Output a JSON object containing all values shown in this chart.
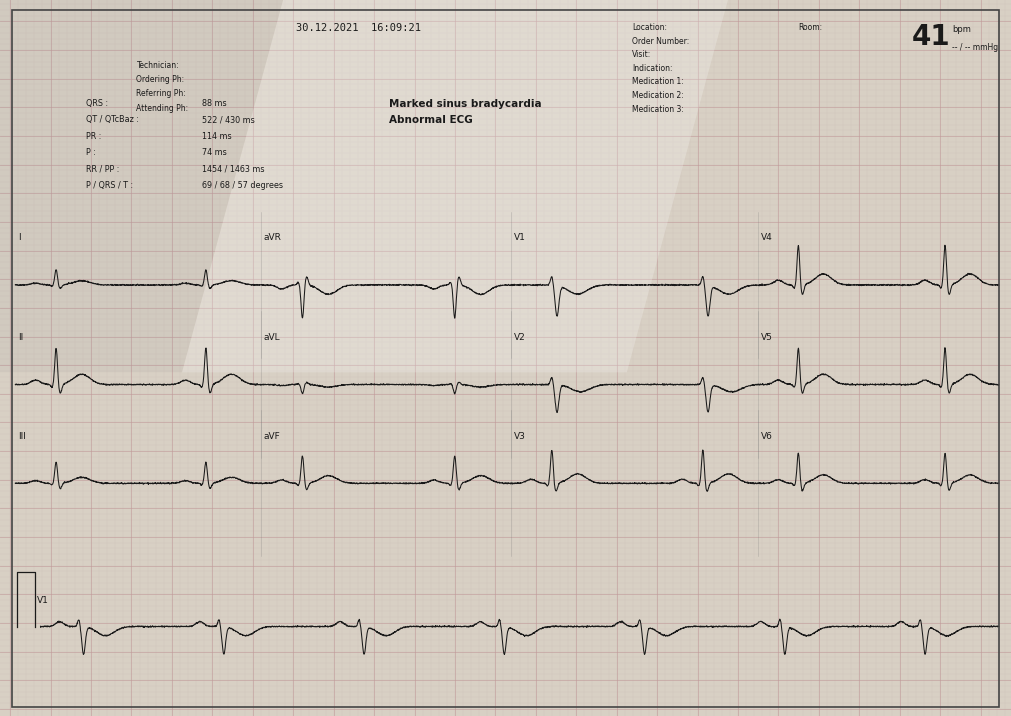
{
  "bg_color": "#d8d0c4",
  "grid_major_color": "#c09898",
  "grid_minor_color": "#cbb8b2",
  "border_color": "#444444",
  "ecg_color": "#1a1a1a",
  "text_color": "#1a1a1a",
  "title_datetime": "30.12.2021  16:09:21",
  "info_left": [
    "Technician:",
    "Ordering Ph:",
    "Referring Ph:",
    "Attending Ph:"
  ],
  "info_right_labels": [
    "Location:",
    "Order Number:",
    "Visit:",
    "Indication:",
    "Medication 1:",
    "Medication 2:",
    "Medication 3:"
  ],
  "room_label": "Room:",
  "bpm_value": "41",
  "bpm_unit": "bpm",
  "bp_value": "-- / -- mmHg",
  "diagnosis1": "Marked sinus bradycardia",
  "diagnosis2": "Abnormal ECG",
  "fig_width": 10.11,
  "fig_height": 7.16,
  "dpi": 100,
  "meas_labels": [
    "QRS :",
    "QT / QTcBaz :",
    "PR :",
    "P :",
    "RR / PP :",
    "P / QRS / T :"
  ],
  "meas_values": [
    "88 ms",
    "522 / 430 ms",
    "114 ms",
    "74 ms",
    "1454 / 1463 ms",
    "69 / 68 / 57 degrees"
  ]
}
